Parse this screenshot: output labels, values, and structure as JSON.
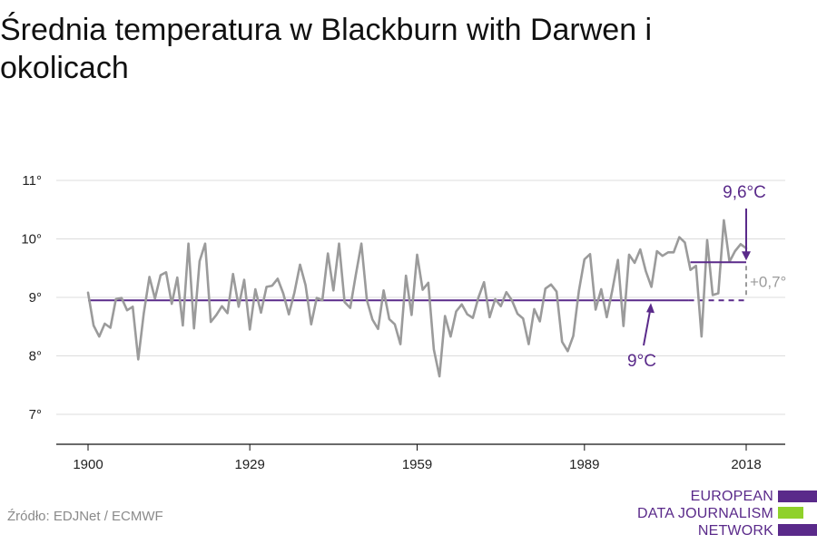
{
  "title": "Średnia temperatura w Blackburn with Darwen i okolicach",
  "source": "Źródło: EDJNet / ECMWF",
  "logo": {
    "lines": [
      "EUROPEAN",
      "DATA JOURNALISM",
      "NETWORK"
    ],
    "colors": {
      "purple": "#5a2a8a",
      "green": "#8fd12a"
    }
  },
  "chart_data": {
    "type": "line",
    "x_ticks": [
      1900,
      1929,
      1959,
      1989,
      2018
    ],
    "y_ticks": [
      {
        "value": 7,
        "label": "7°"
      },
      {
        "value": 8,
        "label": "8°"
      },
      {
        "value": 9,
        "label": "9°"
      },
      {
        "value": 10,
        "label": "10°"
      },
      {
        "value": 11,
        "label": "11°"
      }
    ],
    "xlim": [
      1900,
      2018
    ],
    "ylim": [
      6.5,
      11
    ],
    "grid": true,
    "series": [
      {
        "color": "#9b9b9b",
        "x_start": 1900,
        "values": [
          9.08,
          8.52,
          8.33,
          8.55,
          8.48,
          8.97,
          8.99,
          8.78,
          8.84,
          7.94,
          8.73,
          9.35,
          8.98,
          9.38,
          9.43,
          8.89,
          9.34,
          8.52,
          9.92,
          8.47,
          9.62,
          9.92,
          8.58,
          8.7,
          8.85,
          8.73,
          9.4,
          8.84,
          9.3,
          8.45,
          9.14,
          8.74,
          9.18,
          9.2,
          9.32,
          9.07,
          8.71,
          9.08,
          9.56,
          9.21,
          8.54,
          8.99,
          8.95,
          9.75,
          9.12,
          9.92,
          8.92,
          8.82,
          9.38,
          9.92,
          8.95,
          8.62,
          8.46,
          9.12,
          8.63,
          8.54,
          8.2,
          9.37,
          8.7,
          9.73,
          9.13,
          9.25,
          8.11,
          7.65,
          8.68,
          8.33,
          8.76,
          8.88,
          8.71,
          8.65,
          9.0,
          9.26,
          8.66,
          8.97,
          8.85,
          9.09,
          8.95,
          8.72,
          8.64,
          8.2,
          8.8,
          8.59,
          9.15,
          9.22,
          9.1,
          8.24,
          8.08,
          8.34,
          9.11,
          9.65,
          9.74,
          8.79,
          9.14,
          8.66,
          9.12,
          9.64,
          8.51,
          9.73,
          9.59,
          9.82,
          9.45,
          9.18,
          9.79,
          9.71,
          9.77,
          9.77,
          10.03,
          9.94,
          9.47,
          9.54,
          8.33,
          9.98,
          9.04,
          9.07,
          10.32,
          9.61,
          9.79,
          9.91,
          9.84
        ]
      }
    ],
    "baseline": {
      "value": 8.95,
      "from": 1900,
      "to": 2018,
      "label": "9°C",
      "color": "#5a2a8a"
    },
    "recent": {
      "value": 9.6,
      "from": 2008,
      "to": 2018,
      "label": "9,6°C",
      "color": "#5a2a8a"
    },
    "difference": {
      "label": "+0,7°",
      "color": "#9b9b9b"
    }
  }
}
